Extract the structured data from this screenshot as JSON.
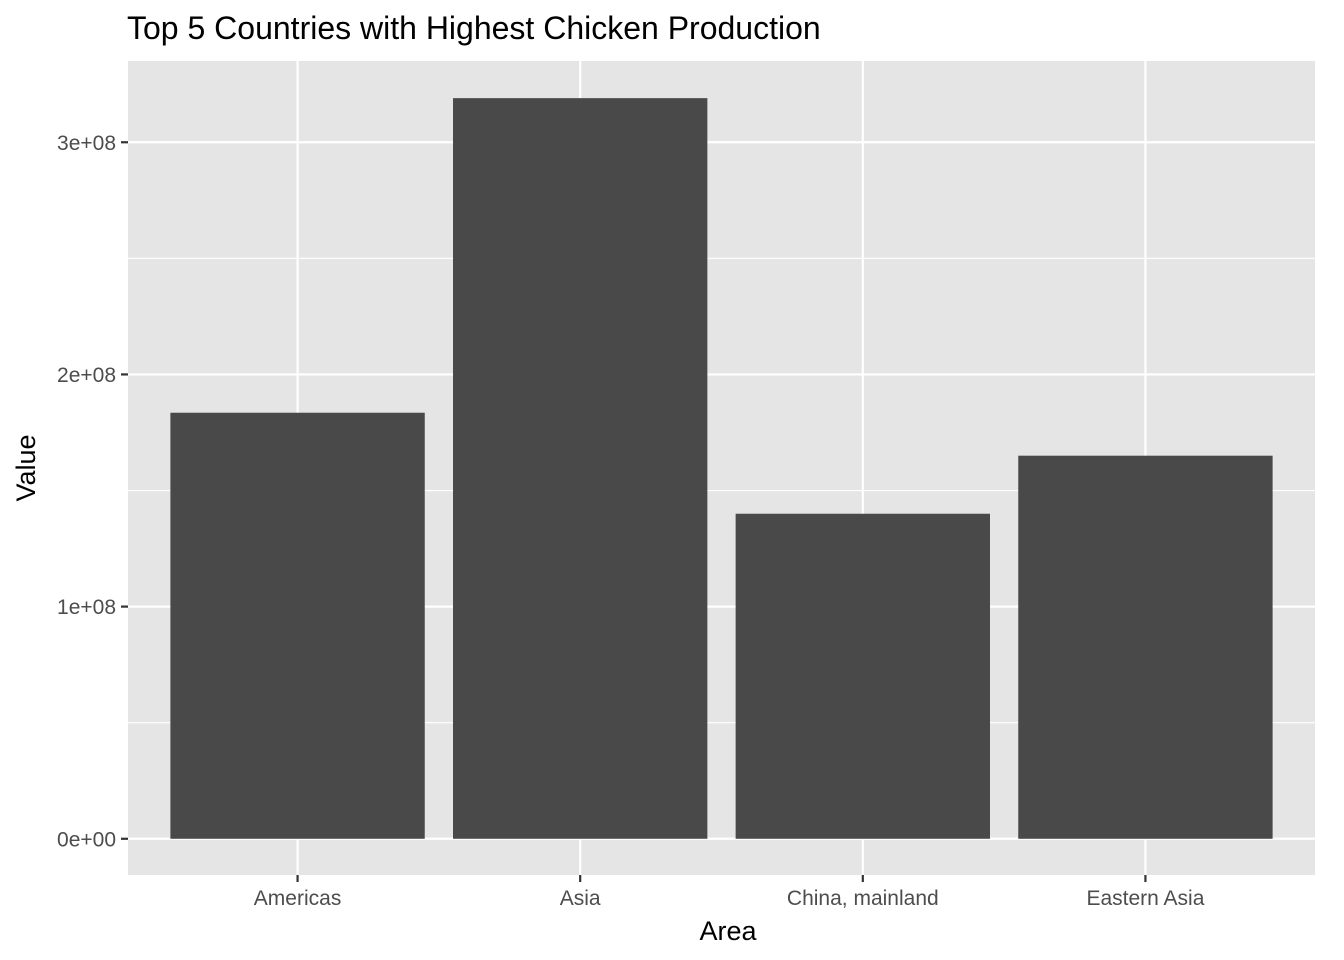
{
  "chart_data": {
    "type": "bar",
    "title": "Top 5 Countries with Highest Chicken Production",
    "xlabel": "Area",
    "ylabel": "Value",
    "categories": [
      "Americas",
      "Asia",
      "China, mainland",
      "Eastern Asia"
    ],
    "values": [
      183500000,
      319000000,
      140000000,
      165000000
    ],
    "ylim": [
      -15600000,
      335000000
    ],
    "yticks": [
      0,
      100000000,
      200000000,
      300000000
    ],
    "ytick_labels": [
      "0e+00",
      "1e+08",
      "2e+08",
      "3e+08"
    ],
    "grid": true,
    "legend": "none",
    "colors": {
      "panel_background": "#e5e5e5",
      "grid_line": "#ffffff",
      "bar_fill": "#494949",
      "tick_mark": "#333333",
      "tick_text": "#4d4d4d"
    }
  }
}
